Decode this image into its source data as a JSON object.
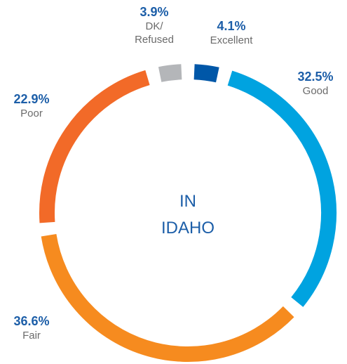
{
  "chart_data": {
    "type": "donut",
    "center_label": "IN\nIDAHO",
    "categories": [
      "Excellent",
      "Good",
      "Fair",
      "Poor",
      "DK/\nRefused"
    ],
    "values": [
      4.1,
      32.5,
      36.6,
      22.9,
      3.9
    ],
    "value_labels": [
      "4.1%",
      "32.5%",
      "36.6%",
      "22.9%",
      "3.9%"
    ],
    "colors": [
      "#0057a8",
      "#00a3e0",
      "#f68b1f",
      "#f26a28",
      "#b4b6b9"
    ]
  }
}
